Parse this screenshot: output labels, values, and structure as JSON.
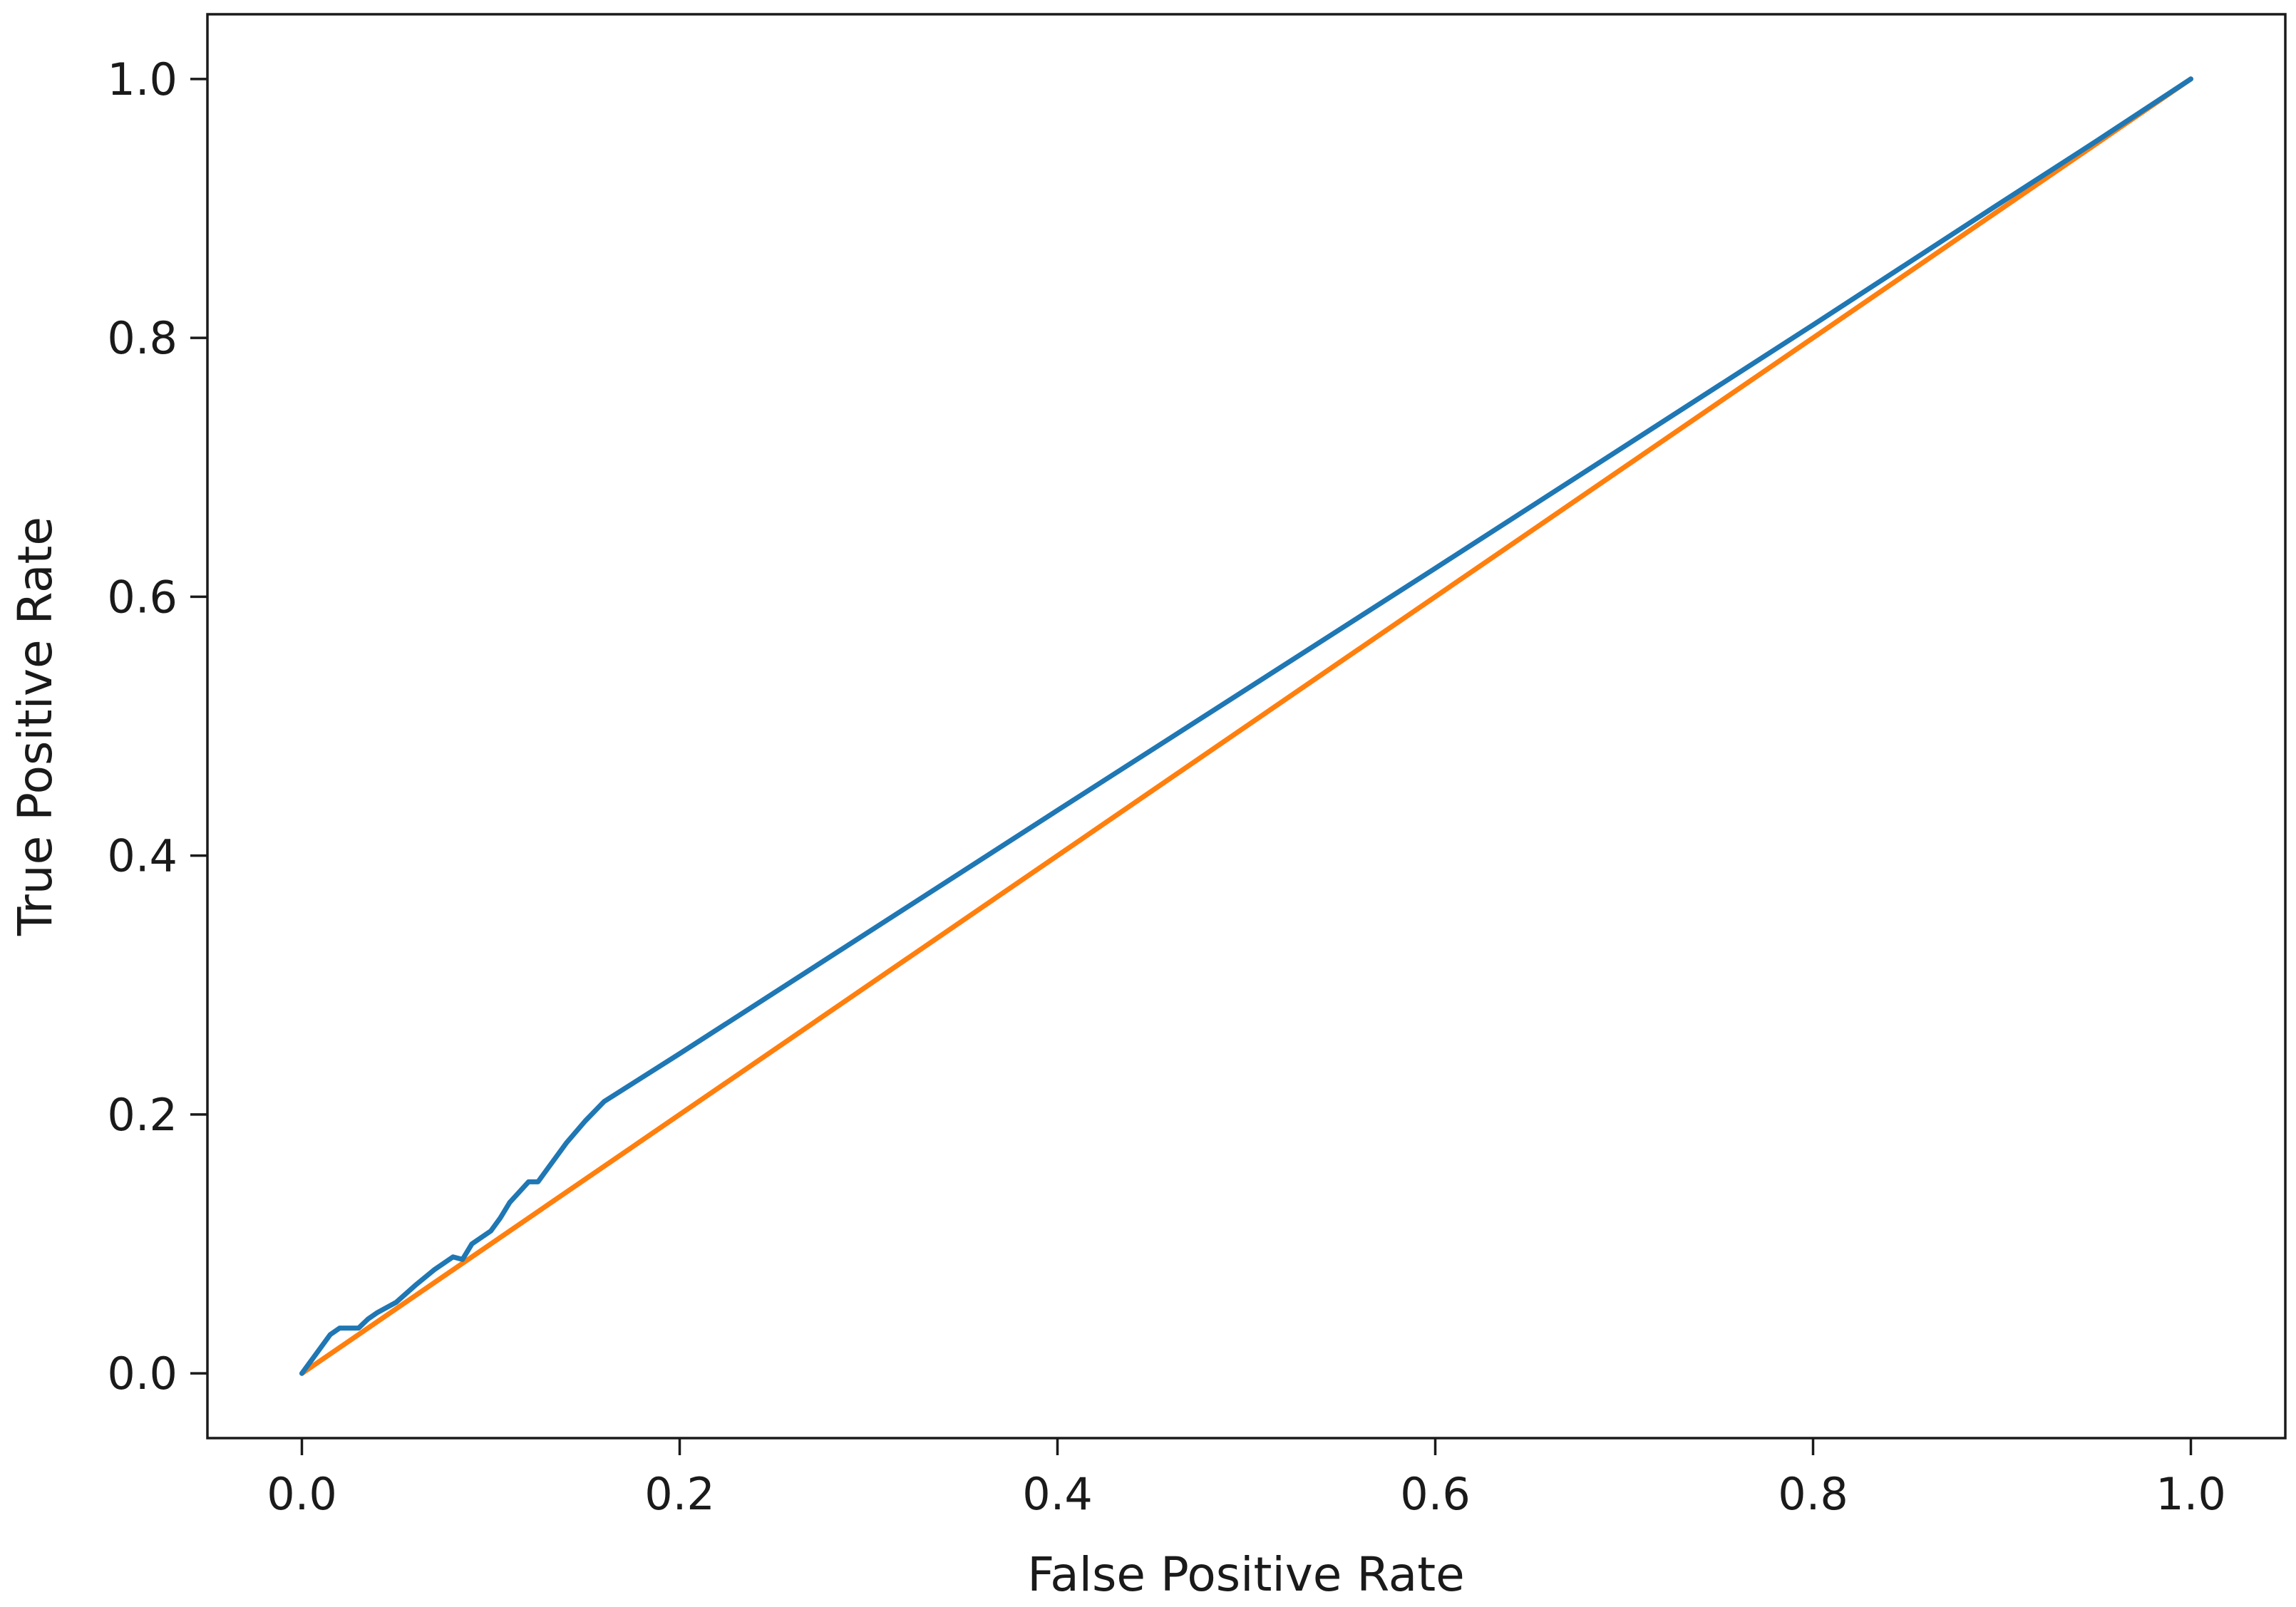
{
  "chart_data": {
    "type": "line",
    "title": "",
    "xlabel": "False Positive Rate",
    "ylabel": "True Positive Rate",
    "xlim": [
      -0.05,
      1.05
    ],
    "ylim": [
      -0.05,
      1.05
    ],
    "xticks": [
      "0.0",
      "0.2",
      "0.4",
      "0.6",
      "0.8",
      "1.0"
    ],
    "yticks": [
      "0.0",
      "0.2",
      "0.4",
      "0.6",
      "0.8",
      "1.0"
    ],
    "grid": false,
    "legend": "none",
    "series": [
      {
        "color": "#1f77b4",
        "x": [
          0.0,
          0.005,
          0.01,
          0.015,
          0.02,
          0.025,
          0.03,
          0.035,
          0.04,
          0.05,
          0.06,
          0.07,
          0.08,
          0.085,
          0.09,
          0.1,
          0.105,
          0.11,
          0.115,
          0.12,
          0.125,
          0.13,
          0.14,
          0.15,
          0.16,
          0.2,
          0.4,
          0.6,
          0.8,
          0.9,
          0.95,
          1.0
        ],
        "y": [
          0.0,
          0.01,
          0.02,
          0.03,
          0.035,
          0.035,
          0.035,
          0.042,
          0.047,
          0.055,
          0.068,
          0.08,
          0.09,
          0.088,
          0.1,
          0.11,
          0.12,
          0.132,
          0.14,
          0.148,
          0.148,
          0.158,
          0.178,
          0.195,
          0.21,
          0.247,
          0.435,
          0.622,
          0.81,
          0.905,
          0.952,
          1.0
        ]
      },
      {
        "color": "#ff7f0e",
        "x": [
          0.0,
          1.0
        ],
        "y": [
          0.0,
          1.0
        ]
      }
    ]
  }
}
